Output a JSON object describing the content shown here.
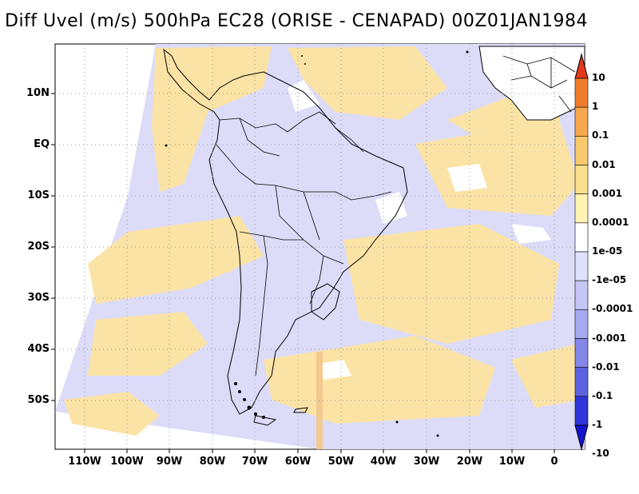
{
  "title": "Diff Uvel (m/s) 500hPa EC28 (ORISE - CENAPAD) 00Z01JAN1984",
  "lat_labels": [
    "10N",
    "EQ",
    "10S",
    "20S",
    "30S",
    "40S",
    "50S"
  ],
  "lon_labels": [
    "110W",
    "100W",
    "90W",
    "80W",
    "70W",
    "60W",
    "50W",
    "40W",
    "30W",
    "20W",
    "10W",
    "0"
  ],
  "colorbar": {
    "labels": [
      "10",
      "1",
      "0.1",
      "0.01",
      "0.001",
      "0.0001",
      "1e-05",
      "-1e-05",
      "-0.0001",
      "-0.001",
      "-0.01",
      "-0.1",
      "-1",
      "-10"
    ],
    "colors": [
      "#e0391e",
      "#f07a2e",
      "#f7a84e",
      "#fac96e",
      "#fbe08c",
      "#fff2b3",
      "#ffffff",
      "#dfe0fb",
      "#c4c6f5",
      "#a6a9ef",
      "#8388e8",
      "#5d63e0",
      "#2f35d6",
      "#1414d0"
    ]
  },
  "field_colors": {
    "positive": "#fbe3a6",
    "negative": "#dcdcf8",
    "coast": "#000000",
    "grid": "#9a9a9a"
  }
}
